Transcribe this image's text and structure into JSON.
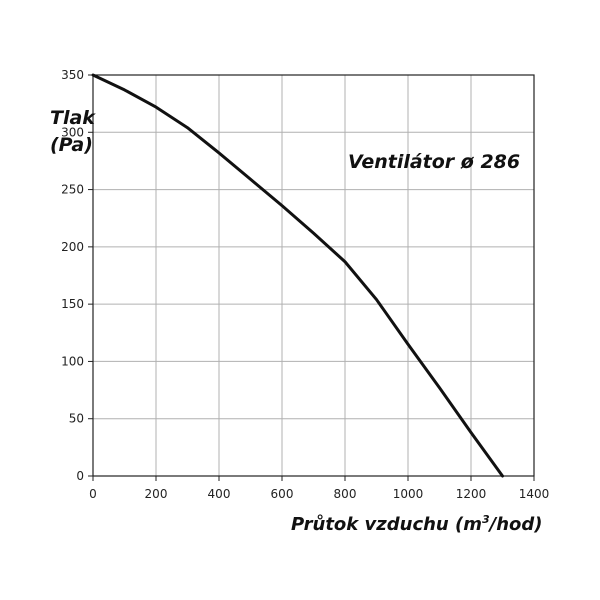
{
  "chart_data": {
    "type": "line",
    "title": "Ventilátor ø 286",
    "ylabel_line1": "Tlak",
    "ylabel_line2": "(Pa)",
    "xlabel_pre": "Průtok vzduchu (m",
    "xlabel_sup": "3",
    "xlabel_post": "/hod)",
    "xlim": [
      0,
      1400
    ],
    "ylim": [
      0,
      350
    ],
    "xticks": [
      0,
      200,
      400,
      600,
      800,
      1000,
      1200,
      1400
    ],
    "yticks": [
      0,
      50,
      100,
      150,
      200,
      250,
      300,
      350
    ],
    "grid": true,
    "series": [
      {
        "x": [
          0,
          100,
          200,
          300,
          400,
          500,
          600,
          700,
          800,
          900,
          1000,
          1100,
          1200,
          1300
        ],
        "y": [
          350,
          337,
          322,
          304,
          282,
          259,
          236,
          212,
          187,
          154,
          115,
          77,
          38,
          0
        ]
      }
    ],
    "colors": {
      "line": "#111111",
      "grid": "#b0b0b0",
      "axis": "#222222"
    }
  }
}
